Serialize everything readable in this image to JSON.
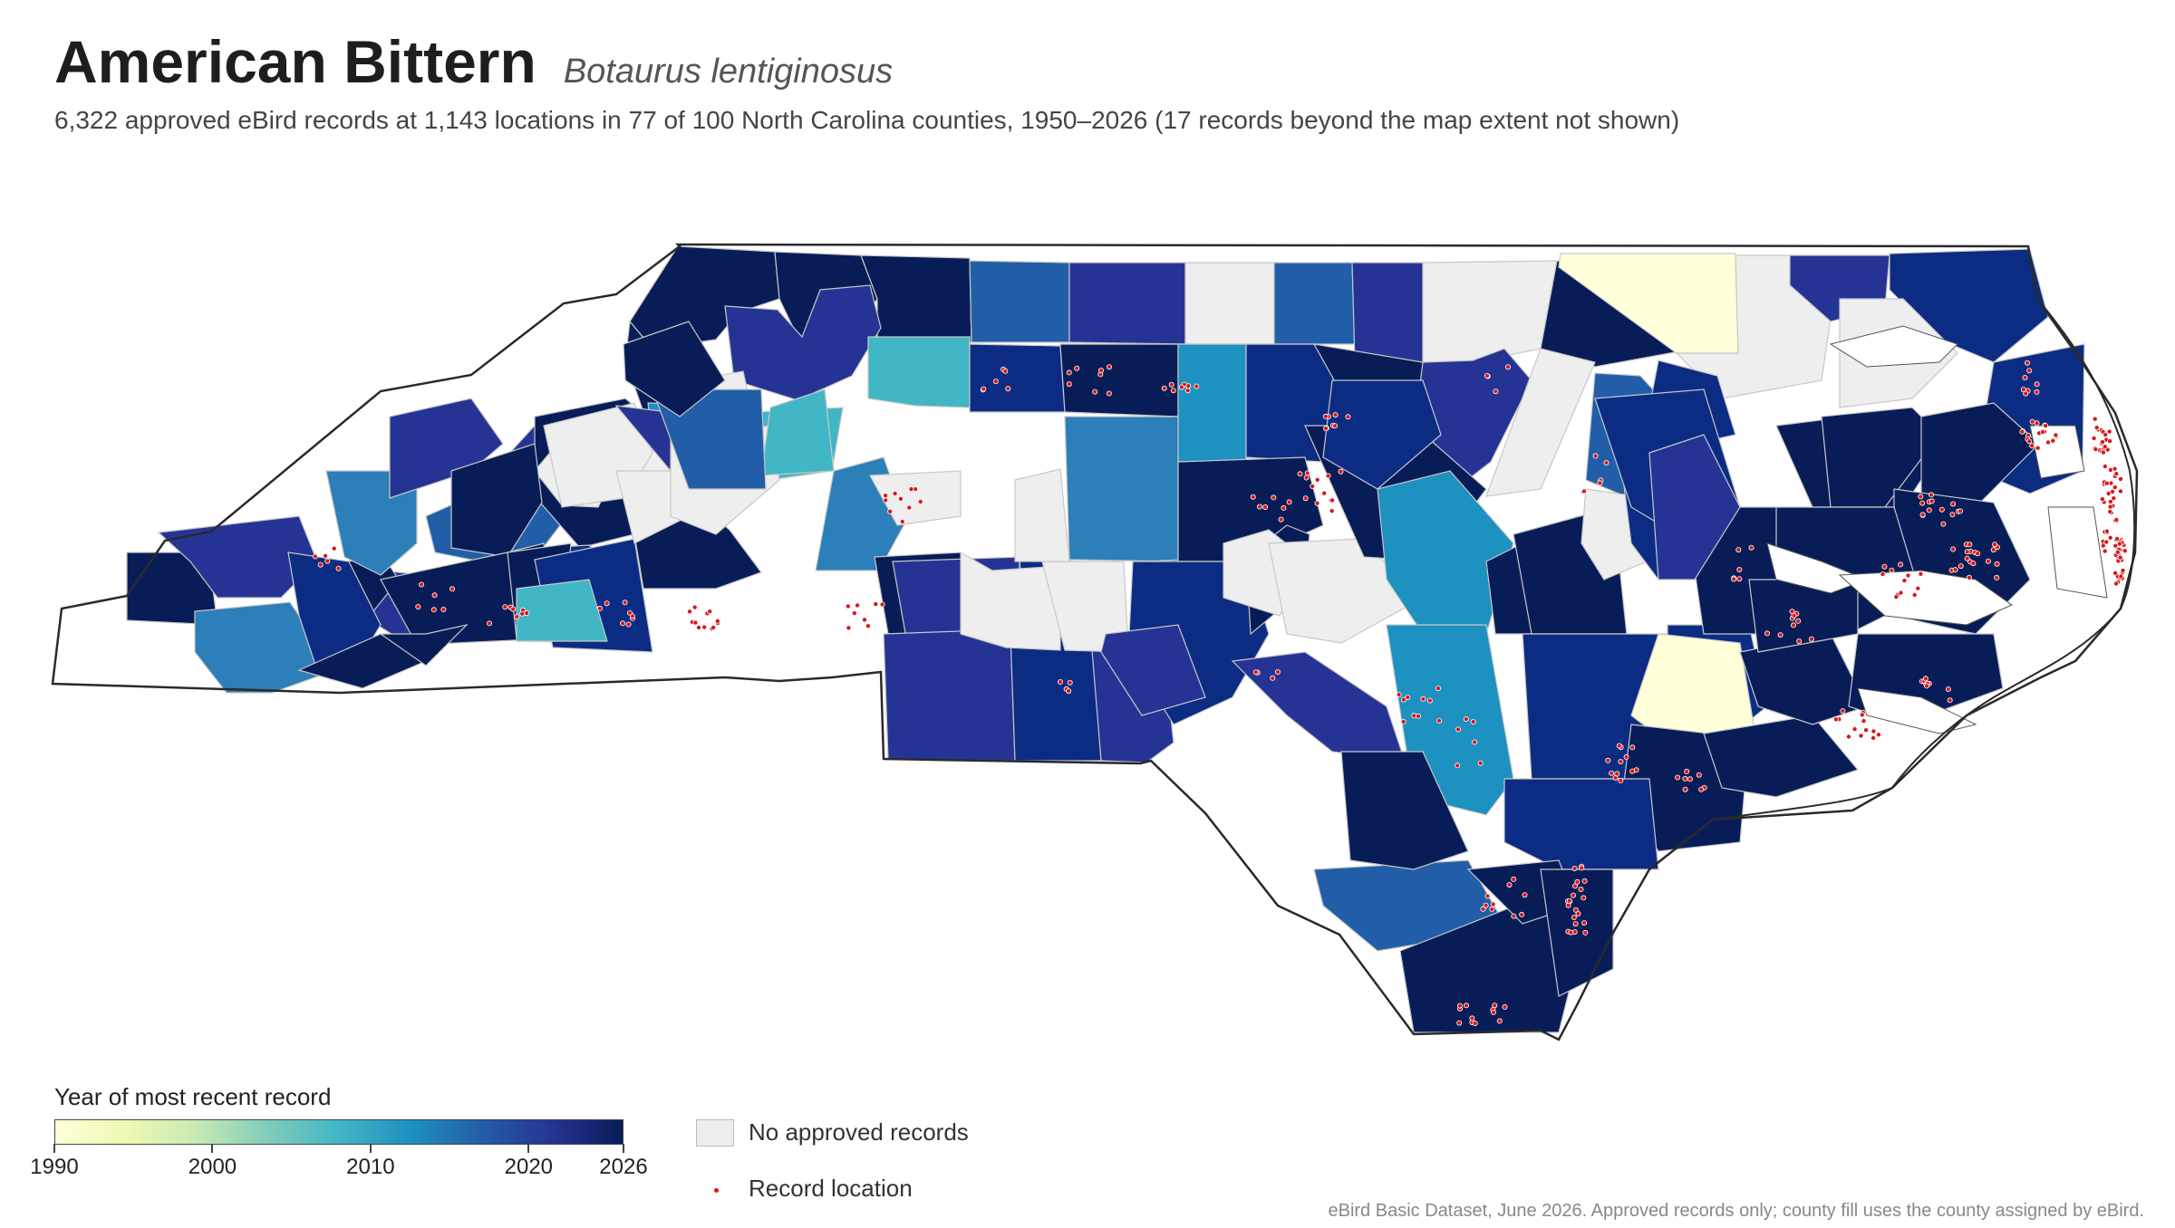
{
  "header": {
    "title": "American Bittern",
    "scientific_name": "Botaurus lentiginosus",
    "subtitle": "6,322 approved eBird records at 1,143 locations in 77 of 100 North Carolina counties, 1950–2026 (17 records beyond the map extent not shown)"
  },
  "legend": {
    "colorbar_title": "Year of most recent record",
    "ticks": [
      "1990",
      "2000",
      "2010",
      "2020",
      "2026"
    ],
    "tick_values": [
      1990,
      2000,
      2010,
      2020,
      2026
    ],
    "range": [
      1990,
      2026
    ],
    "gradient_colors": [
      "#ffffd9",
      "#edf8b1",
      "#c7e9b4",
      "#7fcdbb",
      "#41b6c4",
      "#1d91c0",
      "#225ea8",
      "#253494",
      "#081d58"
    ],
    "no_records_label": "No approved records",
    "no_records_color": "#eeeeee",
    "record_location_label": "Record location",
    "record_color": "#d7191c"
  },
  "map": {
    "state_name": "North Carolina",
    "county_count": 100,
    "counties_with_records": 77
  },
  "source_note": "eBird Basic Dataset, June 2026. Approved records only; county fill uses the county assigned by eBird."
}
